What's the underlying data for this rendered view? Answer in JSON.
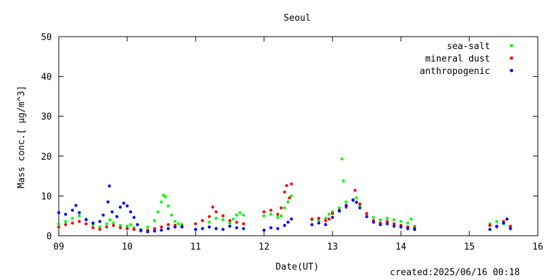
{
  "chart_data": {
    "type": "scatter",
    "title": "Seoul",
    "xlabel": "Date(UT)",
    "ylabel": "Mass conc.[ μg/m^3]",
    "xlim": [
      9,
      16
    ],
    "ylim": [
      0,
      50
    ],
    "xticks": [
      9,
      10,
      11,
      12,
      13,
      14,
      15,
      16
    ],
    "xtick_labels": [
      "09",
      "10",
      "11",
      "12",
      "13",
      "14",
      "15",
      "16"
    ],
    "yticks": [
      0,
      10,
      20,
      30,
      40,
      50
    ],
    "ytick_labels": [
      "0",
      "10",
      "20",
      "30",
      "40",
      "50"
    ],
    "grid": false,
    "legend_position": "top-right",
    "footer": "created:2025/06/16 00:18",
    "series": [
      {
        "name": "sea-salt",
        "color": "#00ff00",
        "points": [
          [
            9.0,
            3.0
          ],
          [
            9.1,
            3.6
          ],
          [
            9.2,
            4.4
          ],
          [
            9.3,
            5.0
          ],
          [
            9.4,
            4.2
          ],
          [
            9.5,
            2.8
          ],
          [
            9.6,
            2.2
          ],
          [
            9.7,
            3.0
          ],
          [
            9.75,
            4.0
          ],
          [
            9.8,
            3.2
          ],
          [
            9.9,
            2.6
          ],
          [
            10.0,
            2.4
          ],
          [
            10.05,
            2.8
          ],
          [
            10.1,
            2.0
          ],
          [
            10.2,
            1.6
          ],
          [
            10.3,
            2.2
          ],
          [
            10.4,
            3.8
          ],
          [
            10.45,
            6.0
          ],
          [
            10.5,
            8.5
          ],
          [
            10.53,
            10.2
          ],
          [
            10.56,
            9.8
          ],
          [
            10.6,
            7.5
          ],
          [
            10.65,
            5.2
          ],
          [
            10.7,
            3.6
          ],
          [
            10.75,
            3.0
          ],
          [
            10.8,
            2.8
          ],
          [
            11.2,
            3.4
          ],
          [
            11.3,
            4.4
          ],
          [
            11.4,
            4.0
          ],
          [
            11.5,
            3.2
          ],
          [
            11.55,
            4.2
          ],
          [
            11.6,
            5.2
          ],
          [
            11.65,
            5.8
          ],
          [
            11.7,
            5.2
          ],
          [
            12.0,
            5.0
          ],
          [
            12.1,
            5.4
          ],
          [
            12.2,
            4.6
          ],
          [
            12.25,
            5.0
          ],
          [
            12.3,
            7.0
          ],
          [
            12.35,
            8.5
          ],
          [
            12.4,
            10.0
          ],
          [
            12.7,
            4.0
          ],
          [
            12.8,
            3.8
          ],
          [
            12.9,
            4.4
          ],
          [
            12.95,
            5.4
          ],
          [
            13.0,
            6.0
          ],
          [
            13.1,
            7.0
          ],
          [
            13.14,
            19.3
          ],
          [
            13.16,
            13.8
          ],
          [
            13.2,
            8.5
          ],
          [
            13.3,
            8.8
          ],
          [
            13.35,
            9.5
          ],
          [
            13.4,
            7.5
          ],
          [
            13.5,
            5.5
          ],
          [
            13.6,
            4.6
          ],
          [
            13.7,
            4.0
          ],
          [
            13.8,
            4.4
          ],
          [
            13.9,
            4.0
          ],
          [
            14.0,
            3.6
          ],
          [
            14.1,
            3.2
          ],
          [
            14.15,
            4.2
          ],
          [
            14.2,
            2.4
          ],
          [
            15.3,
            3.0
          ],
          [
            15.4,
            3.6
          ],
          [
            15.5,
            3.0
          ],
          [
            15.6,
            2.2
          ]
        ]
      },
      {
        "name": "mineral dust",
        "color": "#ff0000",
        "points": [
          [
            9.0,
            2.2
          ],
          [
            9.1,
            2.8
          ],
          [
            9.2,
            3.2
          ],
          [
            9.3,
            3.6
          ],
          [
            9.4,
            3.0
          ],
          [
            9.5,
            2.0
          ],
          [
            9.6,
            1.6
          ],
          [
            9.7,
            2.2
          ],
          [
            9.8,
            2.6
          ],
          [
            9.9,
            2.0
          ],
          [
            10.0,
            1.8
          ],
          [
            10.1,
            1.6
          ],
          [
            10.2,
            1.2
          ],
          [
            10.3,
            1.4
          ],
          [
            10.4,
            1.8
          ],
          [
            10.5,
            2.2
          ],
          [
            10.6,
            2.8
          ],
          [
            10.7,
            2.6
          ],
          [
            10.8,
            2.4
          ],
          [
            11.0,
            3.0
          ],
          [
            11.1,
            3.8
          ],
          [
            11.2,
            4.8
          ],
          [
            11.25,
            7.2
          ],
          [
            11.3,
            6.0
          ],
          [
            11.4,
            5.0
          ],
          [
            11.5,
            3.8
          ],
          [
            11.6,
            3.4
          ],
          [
            11.7,
            3.0
          ],
          [
            12.0,
            6.0
          ],
          [
            12.1,
            6.4
          ],
          [
            12.2,
            5.4
          ],
          [
            12.25,
            7.0
          ],
          [
            12.3,
            11.0
          ],
          [
            12.33,
            12.6
          ],
          [
            12.37,
            9.5
          ],
          [
            12.4,
            13.0
          ],
          [
            12.7,
            4.2
          ],
          [
            12.8,
            4.4
          ],
          [
            12.9,
            3.8
          ],
          [
            12.95,
            4.2
          ],
          [
            13.0,
            5.6
          ],
          [
            13.1,
            6.4
          ],
          [
            13.2,
            7.2
          ],
          [
            13.3,
            9.0
          ],
          [
            13.33,
            11.4
          ],
          [
            13.4,
            8.0
          ],
          [
            13.5,
            5.6
          ],
          [
            13.6,
            3.8
          ],
          [
            13.7,
            3.2
          ],
          [
            13.8,
            3.6
          ],
          [
            13.9,
            3.0
          ],
          [
            14.0,
            2.6
          ],
          [
            14.1,
            2.2
          ],
          [
            14.2,
            2.0
          ],
          [
            15.3,
            2.6
          ],
          [
            15.4,
            2.2
          ],
          [
            15.5,
            3.6
          ],
          [
            15.6,
            2.4
          ]
        ]
      },
      {
        "name": "anthropogenic",
        "color": "#0000ff",
        "points": [
          [
            9.0,
            5.8
          ],
          [
            9.1,
            5.4
          ],
          [
            9.2,
            6.4
          ],
          [
            9.25,
            7.6
          ],
          [
            9.3,
            5.8
          ],
          [
            9.4,
            4.0
          ],
          [
            9.5,
            3.2
          ],
          [
            9.6,
            3.6
          ],
          [
            9.65,
            5.2
          ],
          [
            9.72,
            8.5
          ],
          [
            9.74,
            12.5
          ],
          [
            9.78,
            6.0
          ],
          [
            9.85,
            4.8
          ],
          [
            9.9,
            7.2
          ],
          [
            9.95,
            8.2
          ],
          [
            10.0,
            7.5
          ],
          [
            10.05,
            6.0
          ],
          [
            10.1,
            4.6
          ],
          [
            10.15,
            2.8
          ],
          [
            10.2,
            1.4
          ],
          [
            10.3,
            1.0
          ],
          [
            10.4,
            1.2
          ],
          [
            10.5,
            1.4
          ],
          [
            10.6,
            1.8
          ],
          [
            10.7,
            2.2
          ],
          [
            10.8,
            2.2
          ],
          [
            11.0,
            1.6
          ],
          [
            11.1,
            1.8
          ],
          [
            11.2,
            2.2
          ],
          [
            11.3,
            1.8
          ],
          [
            11.4,
            1.6
          ],
          [
            11.5,
            2.4
          ],
          [
            11.6,
            2.0
          ],
          [
            11.7,
            1.8
          ],
          [
            12.0,
            1.4
          ],
          [
            12.1,
            2.0
          ],
          [
            12.2,
            1.8
          ],
          [
            12.3,
            2.6
          ],
          [
            12.35,
            3.4
          ],
          [
            12.4,
            4.2
          ],
          [
            12.7,
            2.8
          ],
          [
            12.8,
            3.2
          ],
          [
            12.9,
            2.8
          ],
          [
            13.0,
            4.6
          ],
          [
            13.1,
            6.2
          ],
          [
            13.2,
            7.6
          ],
          [
            13.3,
            9.0
          ],
          [
            13.35,
            8.4
          ],
          [
            13.4,
            7.0
          ],
          [
            13.5,
            4.8
          ],
          [
            13.6,
            3.4
          ],
          [
            13.7,
            2.8
          ],
          [
            13.8,
            3.0
          ],
          [
            13.9,
            2.4
          ],
          [
            14.0,
            2.2
          ],
          [
            14.1,
            1.8
          ],
          [
            14.2,
            1.6
          ],
          [
            15.3,
            1.6
          ],
          [
            15.4,
            2.4
          ],
          [
            15.5,
            3.2
          ],
          [
            15.55,
            4.2
          ],
          [
            15.6,
            1.8
          ]
        ]
      }
    ]
  }
}
